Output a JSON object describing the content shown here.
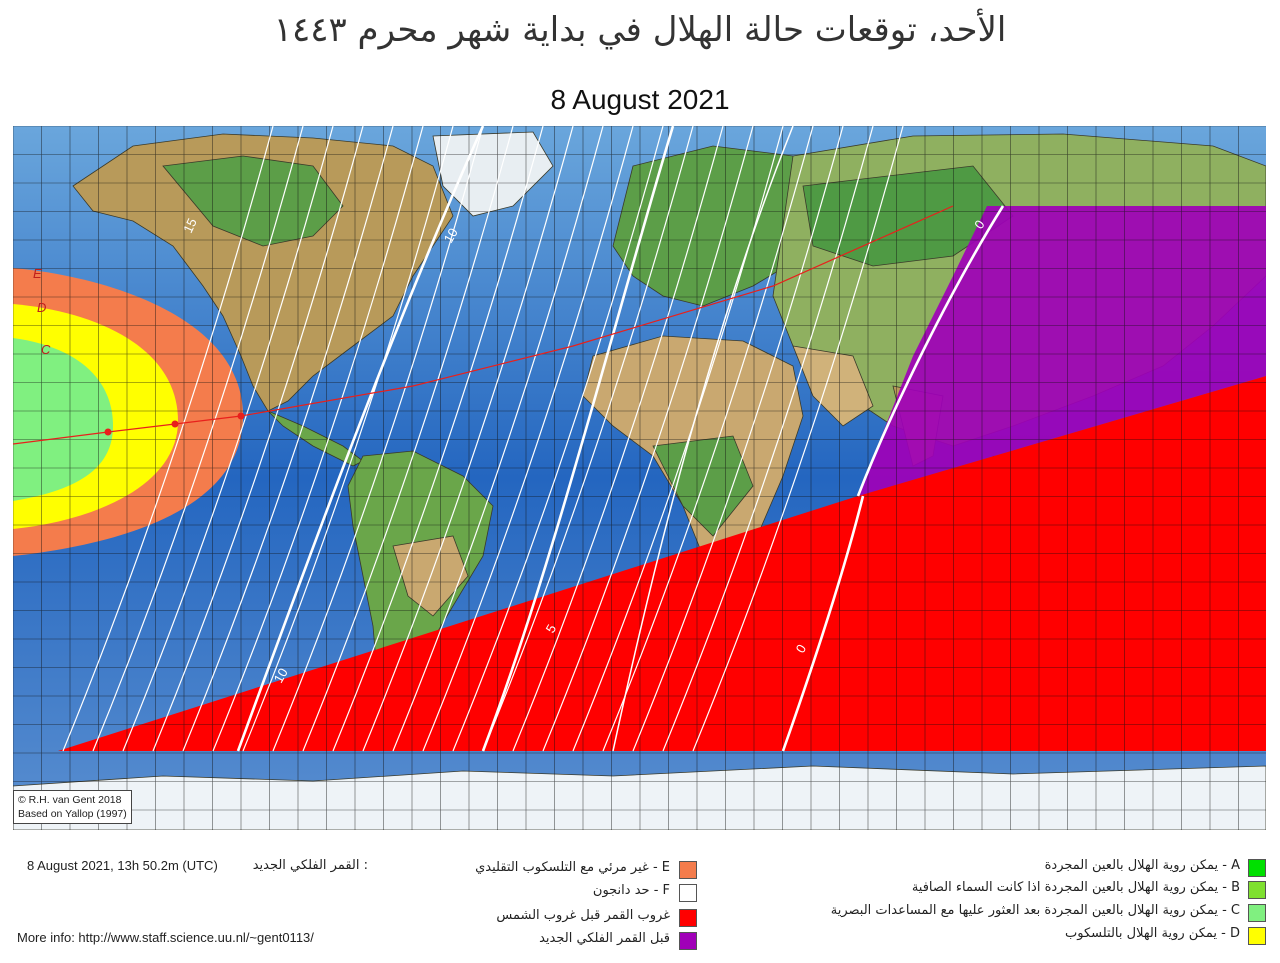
{
  "header": {
    "title_ar": "الأحد، توقعات حالة الهلال في بداية شهر محرم ١٤٤٣",
    "date": "8 August 2021"
  },
  "map": {
    "contour_labels": [
      "15",
      "10",
      "5",
      "10",
      "5",
      "0",
      "0"
    ],
    "zone_letters": [
      "E",
      "D",
      "C"
    ],
    "credit_line1": "© R.H. van Gent 2018",
    "credit_line2": "Based on Yallop (1997)"
  },
  "footer": {
    "new_moon_value": "8 August 2021, 13h 50.2m (UTC)",
    "new_moon_label": ": القمر الفلكي الجديد",
    "more_info": "More info: http://www.staff.science.uu.nl/~gent0113/"
  },
  "legend": {
    "left": [
      {
        "text": "E - غير مرئي مع التلسكوب التقليدي",
        "color": "#f47c4c"
      },
      {
        "text": "F - حد دانجون",
        "color": "#ffffff"
      },
      {
        "text": "غروب القمر قبل غروب الشمس",
        "color": "#ff0000"
      },
      {
        "text": "قبل القمر الفلكي الجديد",
        "color": "#a000b8"
      }
    ],
    "right": [
      {
        "text": "A - يمكن روية الهلال بالعين المجردة",
        "color": "#00e000"
      },
      {
        "text": "B - يمكن روية الهلال بالعين المجردة اذا كانت السماء الصافية",
        "color": "#7fe030"
      },
      {
        "text": "C - يمكن روية الهلال بالعين المجردة بعد العثور عليها مع المساعدات البصرية",
        "color": "#80f080"
      },
      {
        "text": "D - يمكن روية الهلال بالتلسكوب",
        "color": "#ffff00"
      }
    ]
  },
  "colors": {
    "ocean": "#2a6fc4",
    "land": "#c9b27a",
    "forest": "#5aa84a",
    "ice": "#eef3f7",
    "invisible": "#f47c4c",
    "telescope": "#ffff00",
    "optical_aid": "#80f080",
    "moonset_before_sunset": "#ff0000",
    "before_new_moon": "#a000b8"
  }
}
